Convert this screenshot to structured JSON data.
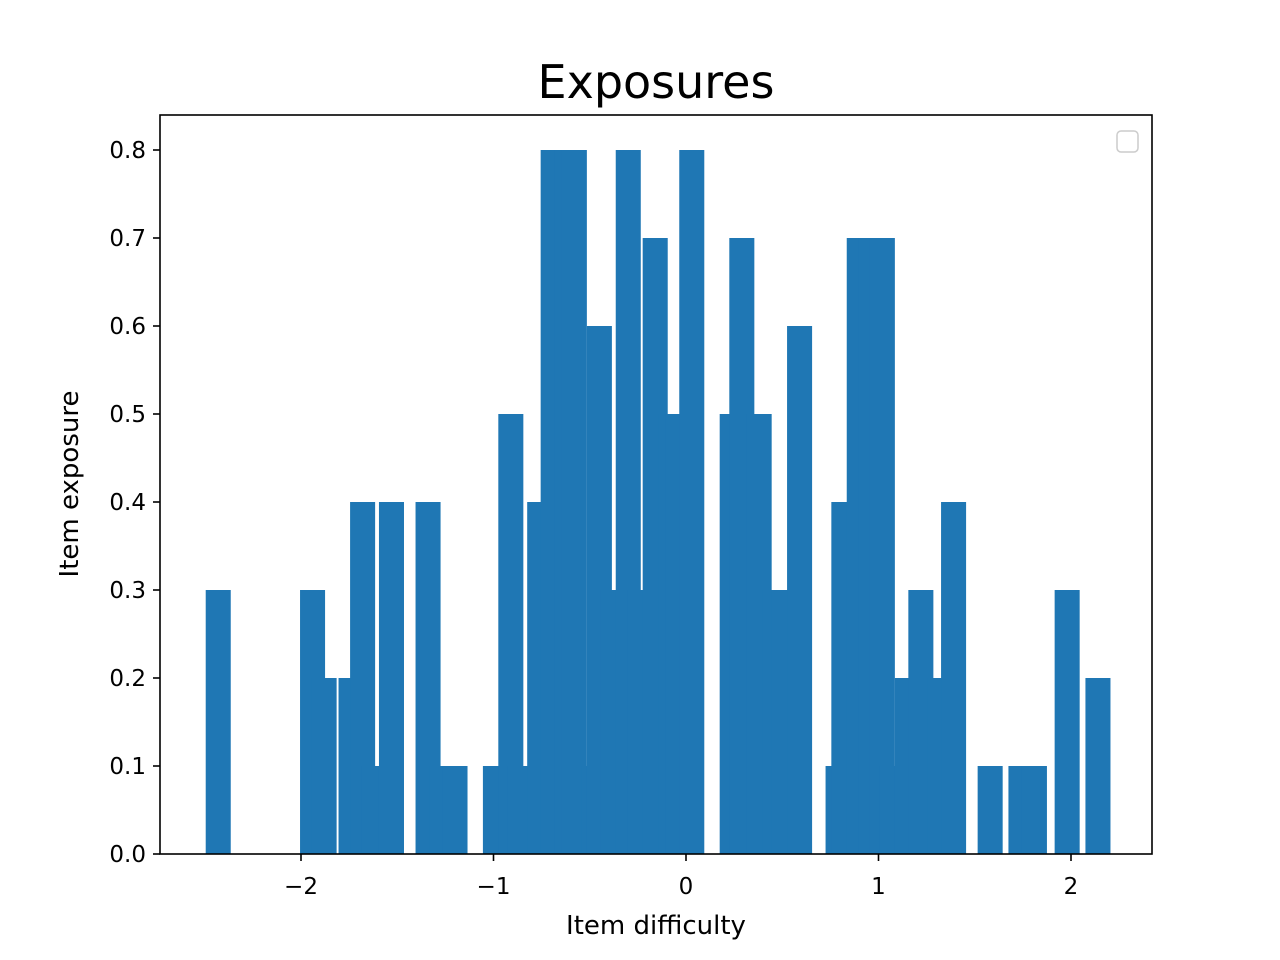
{
  "chart_data": {
    "type": "bar",
    "title": "Exposures",
    "xlabel": "Item difficulty",
    "ylabel": "Item exposure",
    "xlim": [
      -2.75,
      2.42
    ],
    "ylim": [
      0,
      0.84
    ],
    "xticks": [
      {
        "value": -2,
        "label": "−2"
      },
      {
        "value": -1,
        "label": "−1"
      },
      {
        "value": 0,
        "label": "0"
      },
      {
        "value": 1,
        "label": "1"
      },
      {
        "value": 2,
        "label": "2"
      }
    ],
    "yticks": [
      {
        "value": 0.0,
        "label": "0.0"
      },
      {
        "value": 0.1,
        "label": "0.1"
      },
      {
        "value": 0.2,
        "label": "0.2"
      },
      {
        "value": 0.3,
        "label": "0.3"
      },
      {
        "value": 0.4,
        "label": "0.4"
      },
      {
        "value": 0.5,
        "label": "0.5"
      },
      {
        "value": 0.6,
        "label": "0.6"
      },
      {
        "value": 0.7,
        "label": "0.7"
      },
      {
        "value": 0.8,
        "label": "0.8"
      }
    ],
    "bar_width": 0.13,
    "bar_color": "#1f77b4",
    "legend": {
      "position": "top-right",
      "entries": []
    },
    "grid": false,
    "bars": [
      {
        "x": -2.43,
        "y": 0.3
      },
      {
        "x": -1.94,
        "y": 0.3
      },
      {
        "x": -1.88,
        "y": 0.2
      },
      {
        "x": -1.74,
        "y": 0.2
      },
      {
        "x": -1.68,
        "y": 0.4
      },
      {
        "x": -1.62,
        "y": 0.1
      },
      {
        "x": -1.53,
        "y": 0.4
      },
      {
        "x": -1.34,
        "y": 0.4
      },
      {
        "x": -1.27,
        "y": 0.1
      },
      {
        "x": -1.2,
        "y": 0.1
      },
      {
        "x": -0.99,
        "y": 0.1
      },
      {
        "x": -0.91,
        "y": 0.5
      },
      {
        "x": -0.86,
        "y": 0.1
      },
      {
        "x": -0.76,
        "y": 0.4
      },
      {
        "x": -0.69,
        "y": 0.8
      },
      {
        "x": -0.62,
        "y": 0.8
      },
      {
        "x": -0.58,
        "y": 0.8
      },
      {
        "x": -0.48,
        "y": 0.1
      },
      {
        "x": -0.45,
        "y": 0.6
      },
      {
        "x": -0.38,
        "y": 0.3
      },
      {
        "x": -0.3,
        "y": 0.8
      },
      {
        "x": -0.24,
        "y": 0.3
      },
      {
        "x": -0.16,
        "y": 0.7
      },
      {
        "x": -0.08,
        "y": 0.5
      },
      {
        "x": -0.04,
        "y": 0.5
      },
      {
        "x": 0.03,
        "y": 0.8
      },
      {
        "x": 0.24,
        "y": 0.5
      },
      {
        "x": 0.29,
        "y": 0.7
      },
      {
        "x": 0.38,
        "y": 0.5
      },
      {
        "x": 0.46,
        "y": 0.3
      },
      {
        "x": 0.51,
        "y": 0.3
      },
      {
        "x": 0.59,
        "y": 0.6
      },
      {
        "x": 0.79,
        "y": 0.1
      },
      {
        "x": 0.82,
        "y": 0.4
      },
      {
        "x": 0.9,
        "y": 0.7
      },
      {
        "x": 0.96,
        "y": 0.7
      },
      {
        "x": 1.02,
        "y": 0.7
      },
      {
        "x": 1.07,
        "y": 0.1
      },
      {
        "x": 1.15,
        "y": 0.2
      },
      {
        "x": 1.22,
        "y": 0.3
      },
      {
        "x": 1.32,
        "y": 0.2
      },
      {
        "x": 1.39,
        "y": 0.4
      },
      {
        "x": 1.58,
        "y": 0.1
      },
      {
        "x": 1.74,
        "y": 0.1
      },
      {
        "x": 1.81,
        "y": 0.1
      },
      {
        "x": 1.98,
        "y": 0.3
      },
      {
        "x": 2.14,
        "y": 0.2
      }
    ]
  }
}
